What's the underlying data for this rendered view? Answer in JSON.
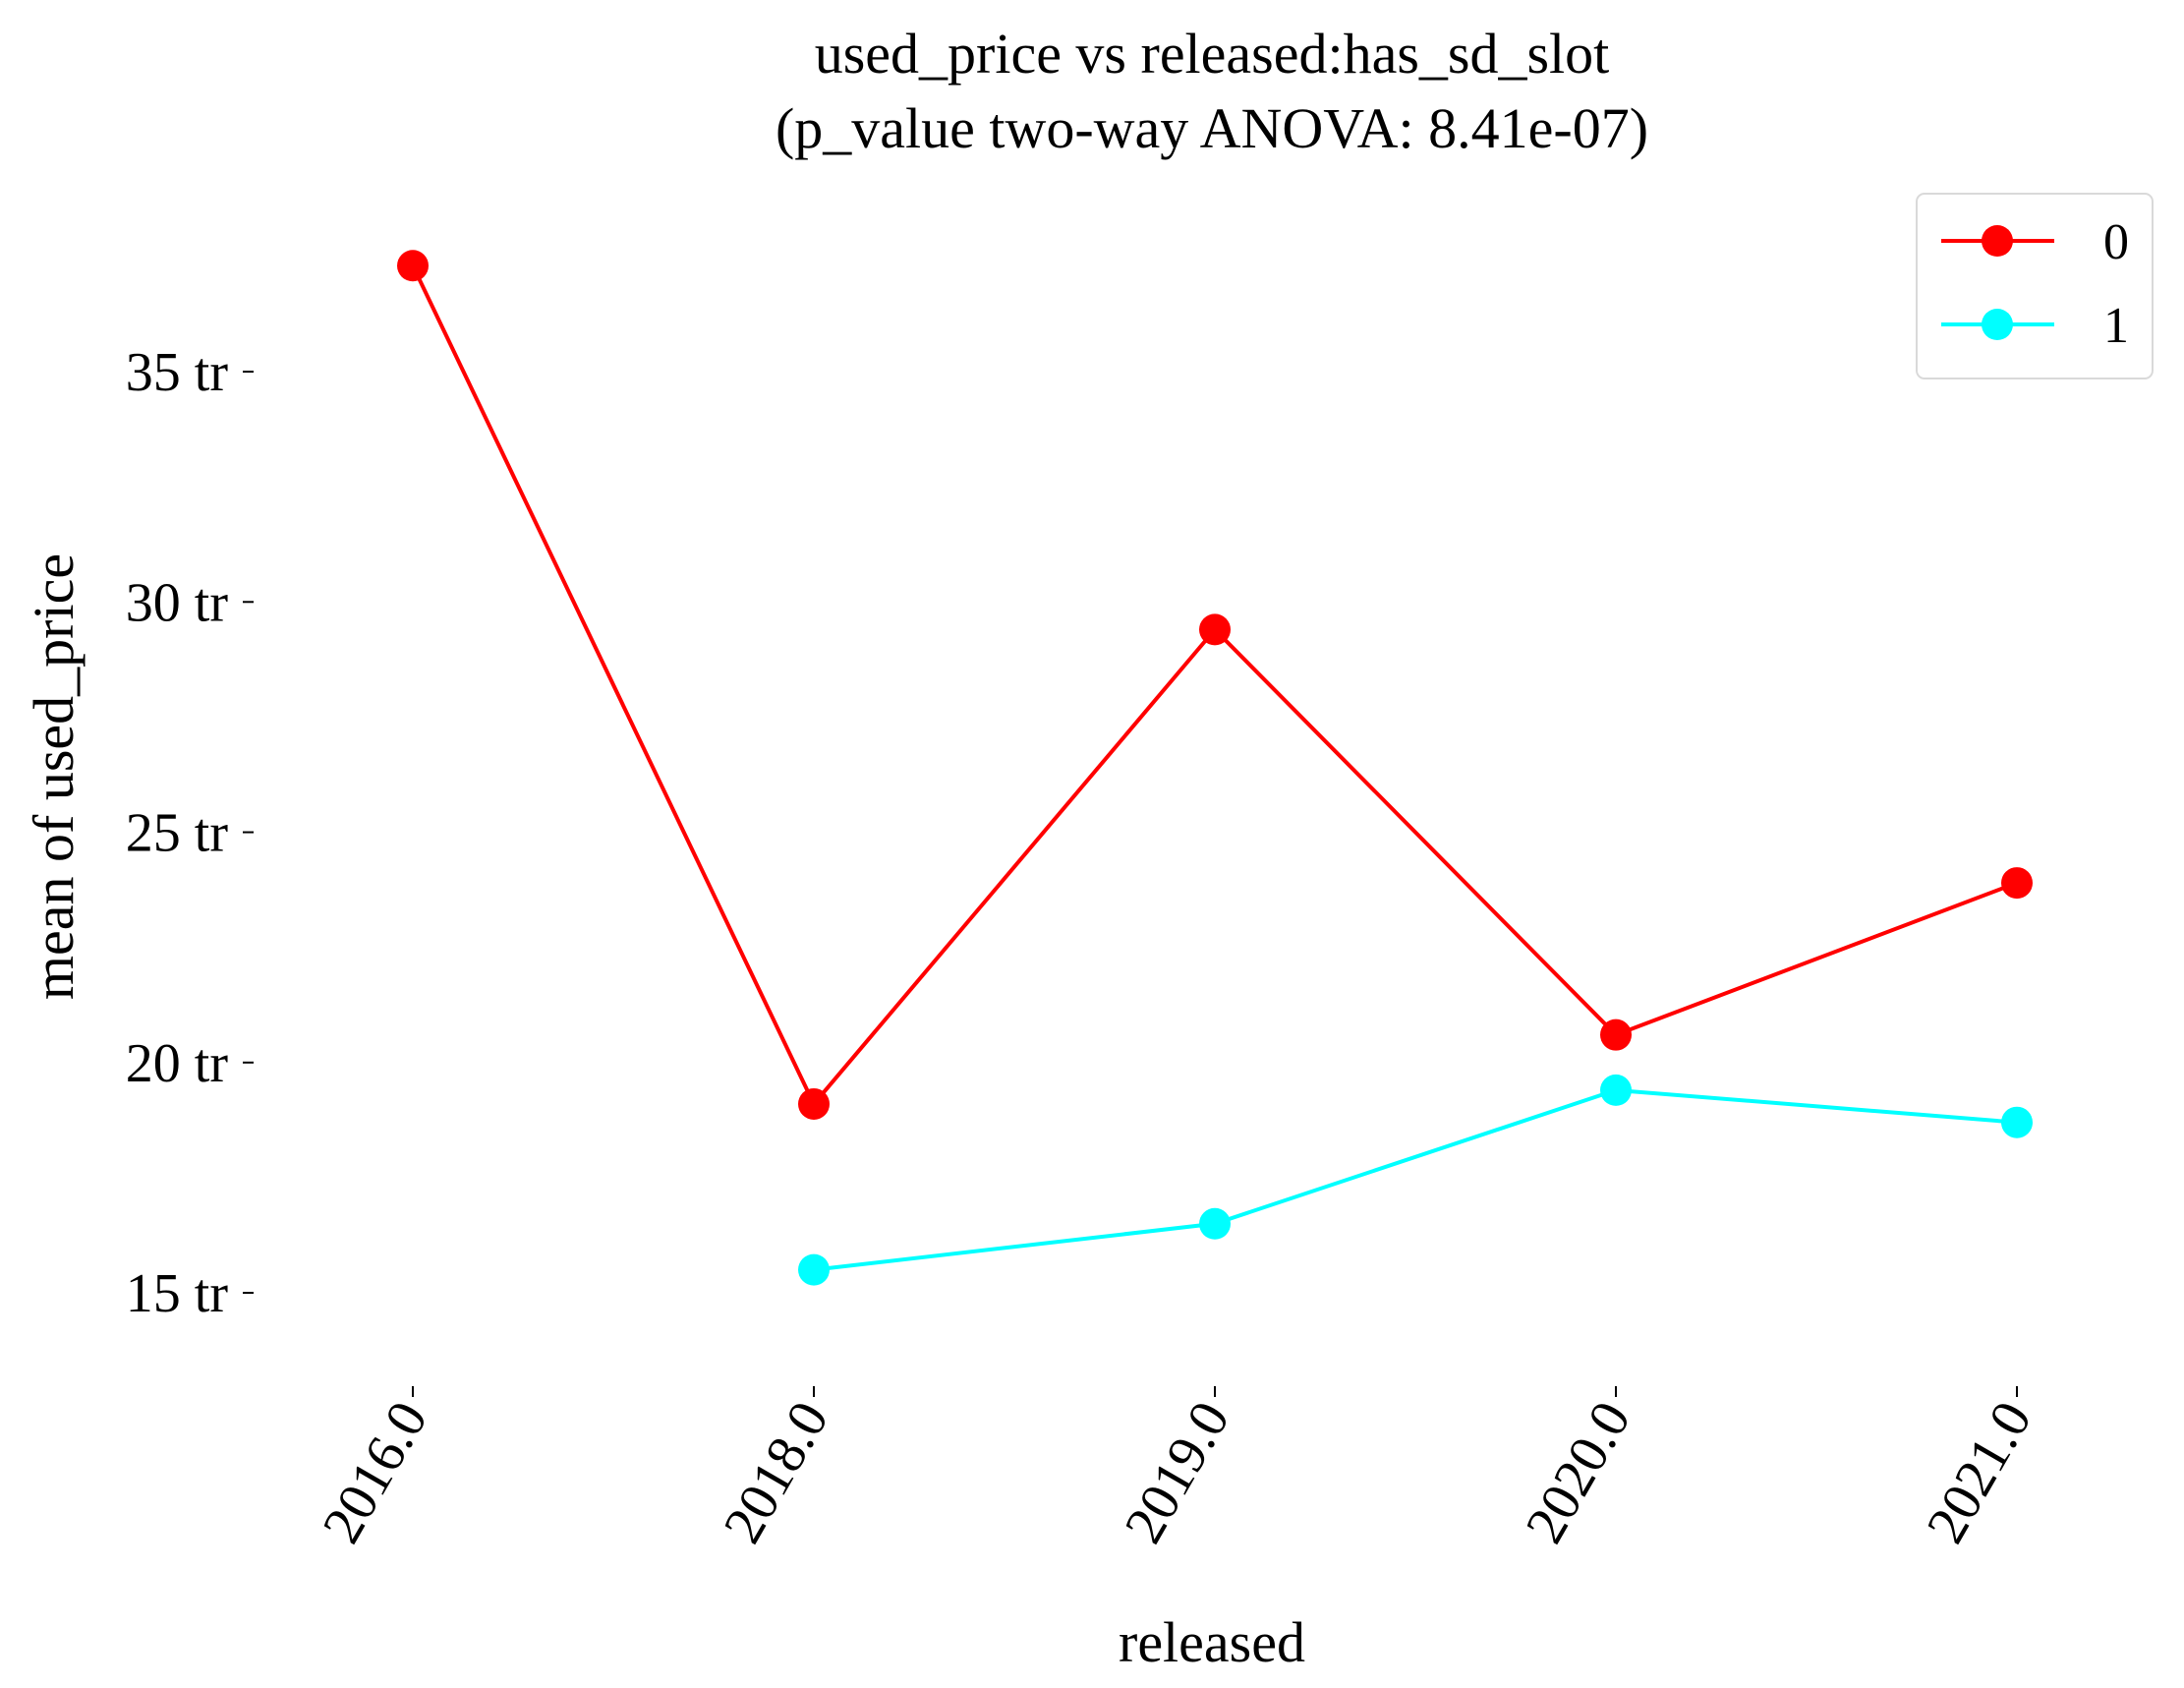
{
  "chart_data": {
    "type": "line",
    "title": "used_price vs released:has_sd_slot",
    "subtitle": "(p_value two-way ANOVA: 8.41e-07)",
    "xlabel": "released",
    "ylabel": "mean of used_price",
    "categories": [
      "2016.0",
      "2018.0",
      "2019.0",
      "2020.0",
      "2021.0"
    ],
    "y_ticks": [
      {
        "value": 15,
        "label": "15 tr"
      },
      {
        "value": 20,
        "label": "20 tr"
      },
      {
        "value": 25,
        "label": "25 tr"
      },
      {
        "value": 30,
        "label": "30 tr"
      },
      {
        "value": 35,
        "label": "35 tr"
      }
    ],
    "ylim": [
      13.4,
      38.8
    ],
    "grid": false,
    "legend_position": "top-right",
    "series": [
      {
        "name": "0",
        "color": "#ff0000",
        "values": [
          37.3,
          19.1,
          29.4,
          20.6,
          23.9
        ]
      },
      {
        "name": "1",
        "color": "#00ffff",
        "values": [
          null,
          15.5,
          16.5,
          19.4,
          18.7
        ]
      }
    ]
  }
}
